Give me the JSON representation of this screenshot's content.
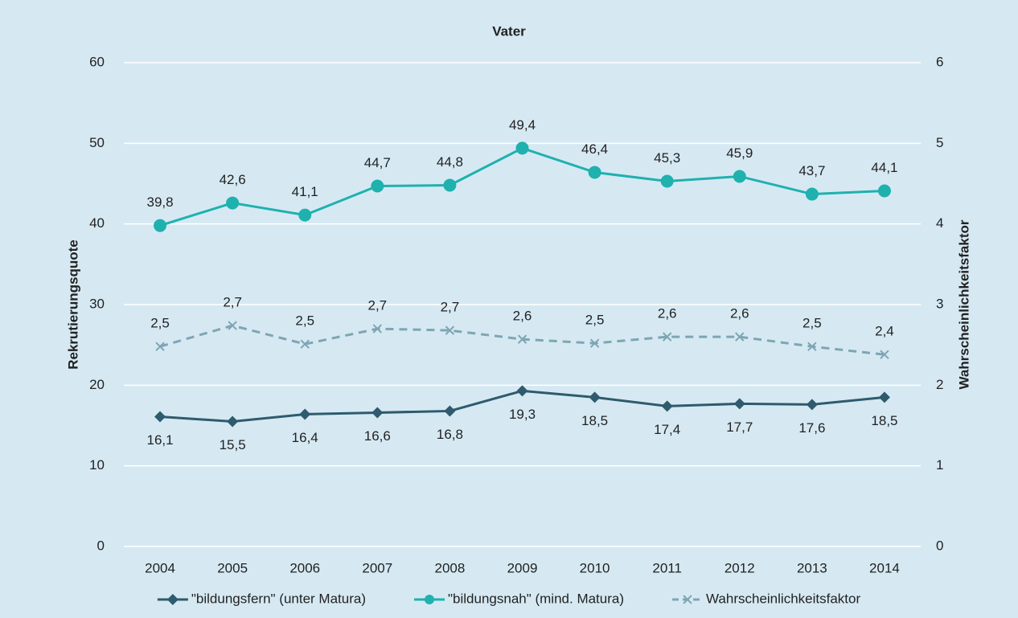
{
  "chart_data": {
    "type": "line",
    "title": "Vater",
    "y_label": "Rekrutierungsquote",
    "y2_label": "Wahrscheinlichkeitsfaktor",
    "categories": [
      "2004",
      "2005",
      "2006",
      "2007",
      "2008",
      "2009",
      "2010",
      "2011",
      "2012",
      "2013",
      "2014"
    ],
    "ylim": [
      0,
      60
    ],
    "yticks": [
      0,
      10,
      20,
      30,
      40,
      50,
      60
    ],
    "y2lim": [
      0,
      6
    ],
    "y2ticks": [
      0,
      1,
      2,
      3,
      4,
      5,
      6
    ],
    "grid": true,
    "legend": "bottom",
    "series": [
      {
        "name": "\"bildungsfern\" (unter Matura)",
        "color": "#2e5b6d",
        "marker": "diamond",
        "dashed": false,
        "label_position": "below",
        "values": [
          16.1,
          15.5,
          16.4,
          16.6,
          16.8,
          19.3,
          18.5,
          17.4,
          17.7,
          17.6,
          18.5
        ],
        "value_labels": [
          "16,1",
          "15,5",
          "16,4",
          "16,6",
          "16,8",
          "19,3",
          "18,5",
          "17,4",
          "17,7",
          "17,6",
          "18,5"
        ]
      },
      {
        "name": "\"bildungsnah\" (mind. Matura)",
        "color": "#1fb1ae",
        "marker": "circle",
        "dashed": false,
        "label_position": "above",
        "values": [
          39.8,
          42.6,
          41.1,
          44.7,
          44.8,
          49.4,
          46.4,
          45.3,
          45.9,
          43.7,
          44.1
        ],
        "value_labels": [
          "39,8",
          "42,6",
          "41,1",
          "44,7",
          "44,8",
          "49,4",
          "46,4",
          "45,3",
          "45,9",
          "43,7",
          "44,1"
        ]
      },
      {
        "name": "Wahrscheinlichkeitsfaktor",
        "color": "#7ea5b4",
        "marker": "x",
        "dashed": true,
        "label_position": "above",
        "axis": "y2",
        "values": [
          2.48,
          2.74,
          2.51,
          2.7,
          2.68,
          2.57,
          2.52,
          2.6,
          2.6,
          2.48,
          2.38
        ],
        "value_labels": [
          "2,5",
          "2,7",
          "2,5",
          "2,7",
          "2,7",
          "2,6",
          "2,5",
          "2,6",
          "2,6",
          "2,5",
          "2,4"
        ]
      }
    ]
  }
}
